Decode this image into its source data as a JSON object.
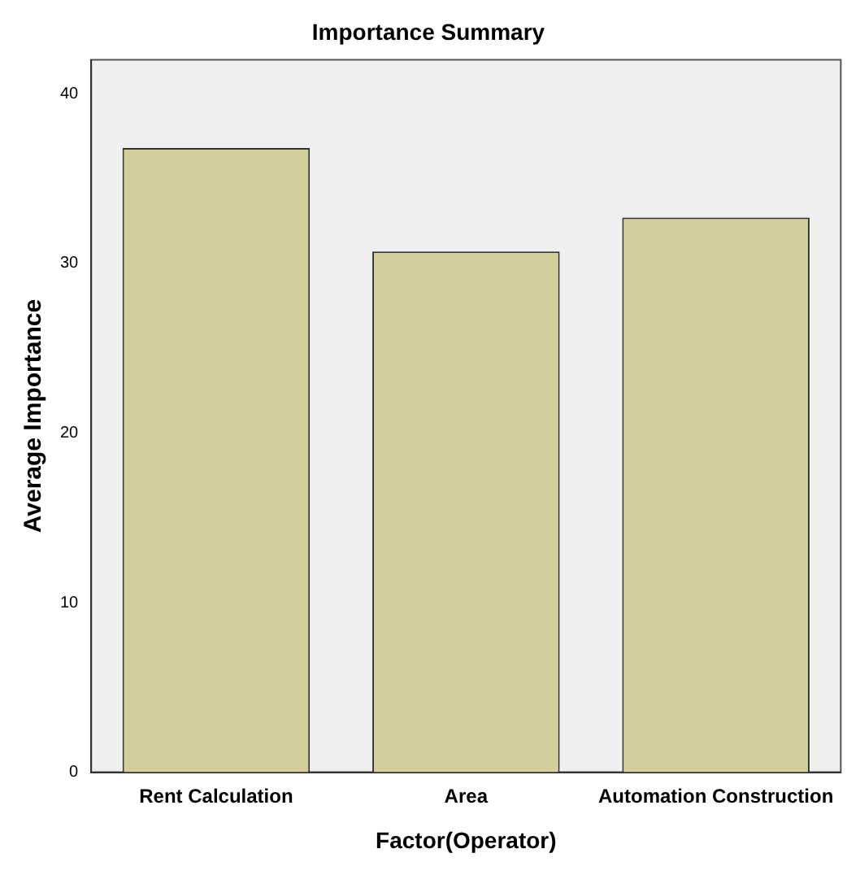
{
  "chart_data": {
    "type": "bar",
    "title": "Importance Summary",
    "xlabel": "Factor(Operator)",
    "ylabel": "Average Importance",
    "categories": [
      "Rent Calculation",
      "Area",
      "Automation Construction"
    ],
    "values": [
      36.8,
      30.7,
      32.7
    ],
    "color": "#d3ce9b",
    "ylim": [
      0,
      42
    ],
    "yticks": [
      0,
      10,
      20,
      30,
      40
    ],
    "grid": false,
    "legend": false
  }
}
